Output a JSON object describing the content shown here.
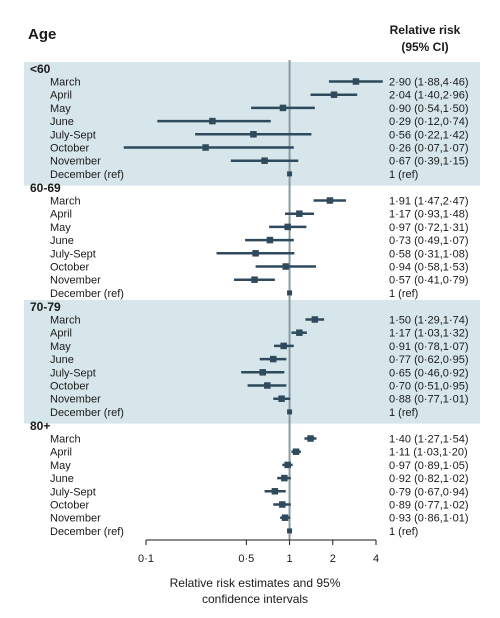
{
  "chart_data": {
    "type": "forest",
    "header_left": "Age",
    "header_right_line1": "Relative risk",
    "header_right_line2": "(95% CI)",
    "xlabel_line1": "Relative risk estimates and 95%",
    "xlabel_line2": "confidence intervals",
    "x_scale": "log",
    "xlim": [
      0.1,
      4
    ],
    "x_ticks": [
      {
        "value": 0.1,
        "label": "0·1"
      },
      {
        "value": 0.5,
        "label": "0·5"
      },
      {
        "value": 1,
        "label": "1"
      },
      {
        "value": 2,
        "label": "2"
      },
      {
        "value": 4,
        "label": "4"
      }
    ],
    "reference_line": 1,
    "colors": {
      "marker": "#2f4a5c",
      "shade": "#d6e6ea",
      "ref_line": "#8a9aa3",
      "axis": "#1a1a1a"
    },
    "groups": [
      {
        "name": "<60",
        "shaded": true,
        "rows": [
          {
            "label": "March",
            "rr": 2.9,
            "lo": 1.88,
            "hi": 4.46,
            "text": "2·90 (1·88,4·46)"
          },
          {
            "label": "April",
            "rr": 2.04,
            "lo": 1.4,
            "hi": 2.96,
            "text": "2·04 (1·40,2·96)"
          },
          {
            "label": "May",
            "rr": 0.9,
            "lo": 0.54,
            "hi": 1.5,
            "text": "0·90 (0·54,1·50)"
          },
          {
            "label": "June",
            "rr": 0.29,
            "lo": 0.12,
            "hi": 0.74,
            "text": "0·29 (0·12,0·74)"
          },
          {
            "label": "July-Sept",
            "rr": 0.56,
            "lo": 0.22,
            "hi": 1.42,
            "text": "0·56 (0·22,1·42)"
          },
          {
            "label": "October",
            "rr": 0.26,
            "lo": 0.07,
            "hi": 1.07,
            "text": "0·26 (0·07,1·07)"
          },
          {
            "label": "November",
            "rr": 0.67,
            "lo": 0.39,
            "hi": 1.15,
            "text": "0·67 (0·39,1·15)"
          },
          {
            "label": "December (ref)",
            "rr": 1,
            "lo": 1,
            "hi": 1,
            "text": "1 (ref)"
          }
        ]
      },
      {
        "name": "60-69",
        "shaded": false,
        "rows": [
          {
            "label": "March",
            "rr": 1.91,
            "lo": 1.47,
            "hi": 2.47,
            "text": "1·91 (1·47,2·47)"
          },
          {
            "label": "April",
            "rr": 1.17,
            "lo": 0.93,
            "hi": 1.48,
            "text": "1·17 (0·93,1·48)"
          },
          {
            "label": "May",
            "rr": 0.97,
            "lo": 0.72,
            "hi": 1.31,
            "text": "0·97 (0·72,1·31)"
          },
          {
            "label": "June",
            "rr": 0.73,
            "lo": 0.49,
            "hi": 1.07,
            "text": "0·73 (0·49,1·07)"
          },
          {
            "label": "July-Sept",
            "rr": 0.58,
            "lo": 0.31,
            "hi": 1.08,
            "text": "0·58 (0·31,1·08)"
          },
          {
            "label": "October",
            "rr": 0.94,
            "lo": 0.58,
            "hi": 1.53,
            "text": "0·94 (0·58,1·53)"
          },
          {
            "label": "November",
            "rr": 0.57,
            "lo": 0.41,
            "hi": 0.79,
            "text": "0·57 (0·41,0·79)"
          },
          {
            "label": "December (ref)",
            "rr": 1,
            "lo": 1,
            "hi": 1,
            "text": "1 (ref)"
          }
        ]
      },
      {
        "name": "70-79",
        "shaded": true,
        "rows": [
          {
            "label": "March",
            "rr": 1.5,
            "lo": 1.29,
            "hi": 1.74,
            "text": "1·50 (1·29,1·74)"
          },
          {
            "label": "April",
            "rr": 1.17,
            "lo": 1.03,
            "hi": 1.32,
            "text": "1·17 (1·03,1·32)"
          },
          {
            "label": "May",
            "rr": 0.91,
            "lo": 0.78,
            "hi": 1.07,
            "text": "0·91 (0·78,1·07)"
          },
          {
            "label": "June",
            "rr": 0.77,
            "lo": 0.62,
            "hi": 0.95,
            "text": "0·77 (0·62,0·95)"
          },
          {
            "label": "July-Sept",
            "rr": 0.65,
            "lo": 0.46,
            "hi": 0.92,
            "text": "0·65 (0·46,0·92)"
          },
          {
            "label": "October",
            "rr": 0.7,
            "lo": 0.51,
            "hi": 0.95,
            "text": "0·70 (0·51,0·95)"
          },
          {
            "label": "November",
            "rr": 0.88,
            "lo": 0.77,
            "hi": 1.01,
            "text": "0·88 (0·77,1·01)"
          },
          {
            "label": "December (ref)",
            "rr": 1,
            "lo": 1,
            "hi": 1,
            "text": "1 (ref)"
          }
        ]
      },
      {
        "name": "80+",
        "shaded": false,
        "rows": [
          {
            "label": "March",
            "rr": 1.4,
            "lo": 1.27,
            "hi": 1.54,
            "text": "1·40 (1·27,1·54)"
          },
          {
            "label": "April",
            "rr": 1.11,
            "lo": 1.03,
            "hi": 1.2,
            "text": "1·11 (1·03,1·20)"
          },
          {
            "label": "May",
            "rr": 0.97,
            "lo": 0.89,
            "hi": 1.05,
            "text": "0·97 (0·89,1·05)"
          },
          {
            "label": "June",
            "rr": 0.92,
            "lo": 0.82,
            "hi": 1.02,
            "text": "0·92 (0·82,1·02)"
          },
          {
            "label": "July-Sept",
            "rr": 0.79,
            "lo": 0.67,
            "hi": 0.94,
            "text": "0·79 (0·67,0·94)"
          },
          {
            "label": "October",
            "rr": 0.89,
            "lo": 0.77,
            "hi": 1.02,
            "text": "0·89 (0·77,1·02)"
          },
          {
            "label": "November",
            "rr": 0.93,
            "lo": 0.86,
            "hi": 1.01,
            "text": "0·93 (0·86,1·01)"
          },
          {
            "label": "December (ref)",
            "rr": 1,
            "lo": 1,
            "hi": 1,
            "text": "1 (ref)"
          }
        ]
      }
    ]
  }
}
